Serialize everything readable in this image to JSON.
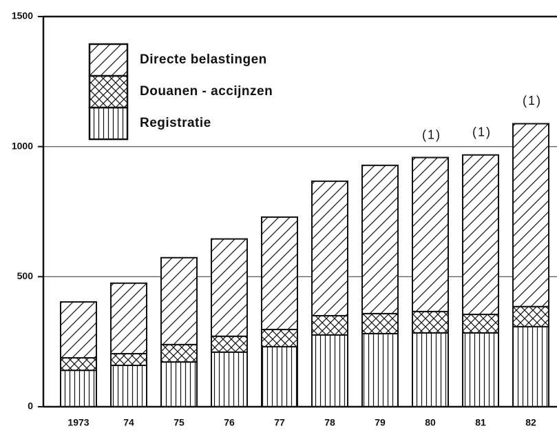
{
  "chart_data": {
    "type": "stacked_bar",
    "categories": [
      "1973",
      "74",
      "75",
      "76",
      "77",
      "78",
      "79",
      "80",
      "81",
      "82"
    ],
    "series": [
      {
        "name": "Registratie",
        "hatch": "vertical",
        "values": [
          140,
          159,
          172,
          210,
          231,
          276,
          281,
          284,
          284,
          308
        ]
      },
      {
        "name": "Douanen - accijnzen",
        "hatch": "cross",
        "values": [
          48,
          45,
          67,
          61,
          66,
          74,
          77,
          82,
          71,
          77
        ]
      },
      {
        "name": "Directe belastingen",
        "hatch": "diagonal",
        "values": [
          215,
          271,
          334,
          374,
          432,
          517,
          570,
          592,
          613,
          703
        ]
      }
    ],
    "annotations": [
      {
        "text": "(1)",
        "category": "80"
      },
      {
        "text": "(1)",
        "category": "81"
      },
      {
        "text": "(1)",
        "category": "82"
      }
    ],
    "ylim": [
      0,
      1500
    ],
    "yticks": [
      0,
      500,
      1000,
      1500
    ],
    "grid": true,
    "legend": "upper left"
  }
}
